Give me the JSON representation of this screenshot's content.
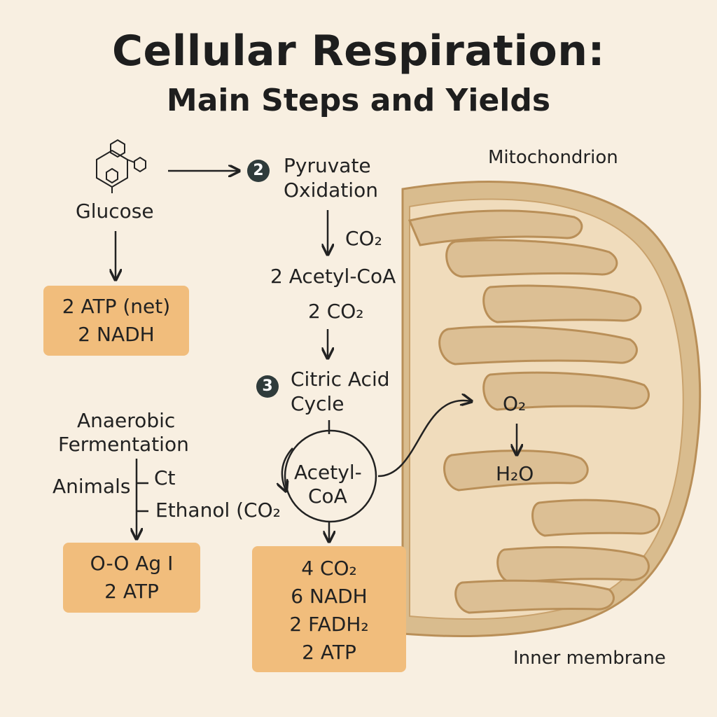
{
  "title": {
    "line1": "Cellular Respiration:",
    "line2": "Main Steps and Yields"
  },
  "glucose": {
    "label": "Glucose",
    "icon": "glucose-molecule-icon"
  },
  "glycolysis_yield": {
    "line1": "2 ATP (net)",
    "line2": "2 NADH"
  },
  "pyruvate_oxidation": {
    "step": "2",
    "line1": "Pyruvate",
    "line2": "Oxidation",
    "co2": "CO₂",
    "product": "2 Acetyl-CoA",
    "co2_2": "2 CO₂"
  },
  "citric_acid_cycle": {
    "step": "3",
    "line1": "Citric Acid",
    "line2": "Cycle",
    "center1": "Acetyl-",
    "center2": "CoA"
  },
  "cycle_yield": {
    "line1": "4 CO₂",
    "line2": "6 NADH",
    "line3": "2 FADH₂",
    "line4": "2 ATP"
  },
  "fermentation": {
    "line1": "Anaerobic",
    "line2": "Fermentation",
    "animals": "Animals",
    "branch1": "Ct",
    "branch2": "Ethanol (CO₂"
  },
  "fermentation_yield": {
    "line1": "O-O Ag I",
    "line2": "2 ATP"
  },
  "mitochondrion": {
    "label": "Mitochondrion",
    "o2": "O₂",
    "h2o": "H₂O",
    "inner_membrane": "Inner membrane"
  },
  "colors": {
    "background": "#f8efe1",
    "box": "#f1bd7c",
    "mito_outer": "#d4b485",
    "mito_matrix": "#f0dcbc",
    "cristae": "#dcbf94"
  }
}
